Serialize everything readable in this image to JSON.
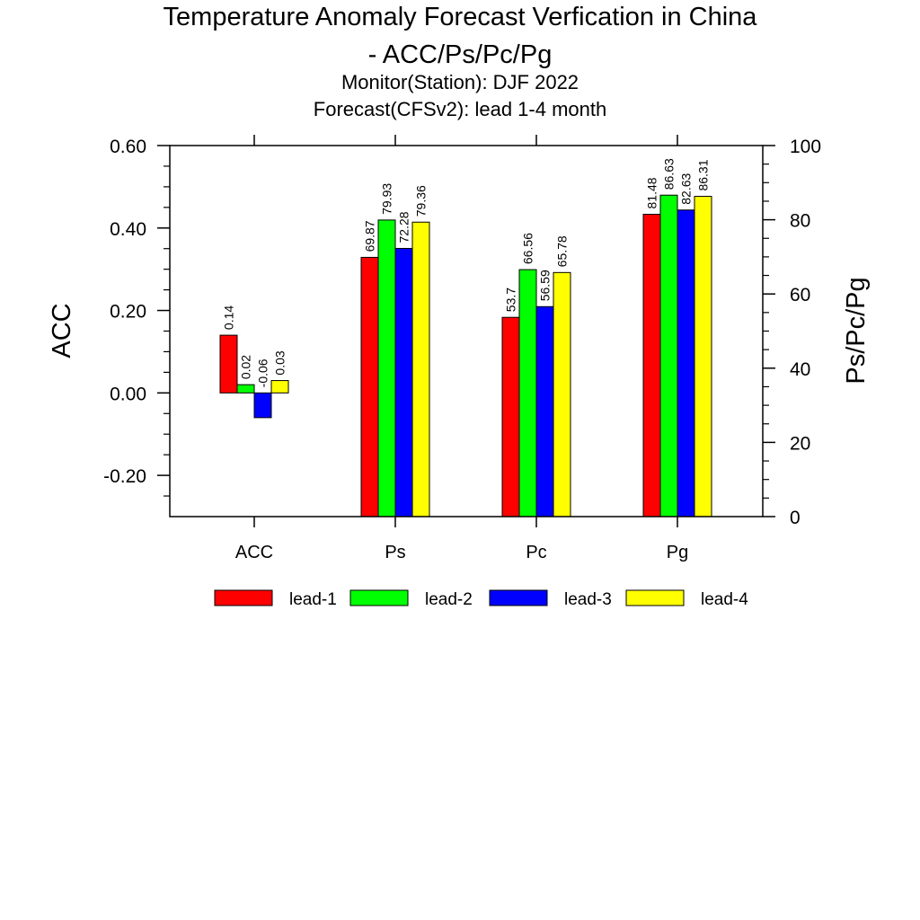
{
  "chart_data": {
    "type": "bar",
    "title_line1": "Temperature Anomaly Forecast Verfication in China",
    "title_line2": "- ACC/Ps/Pc/Pg",
    "subtitle_line1": "Monitor(Station): DJF 2022",
    "subtitle_line2": "Forecast(CFSv2): lead 1-4 month",
    "ylabel_left": "ACC",
    "ylabel_right": "Ps/Pc/Pg",
    "categories": [
      "ACC",
      "Ps",
      "Pc",
      "Pg"
    ],
    "left_axis": {
      "min": -0.3,
      "max": 0.6,
      "ticks": [
        -0.2,
        0.0,
        0.2,
        0.4,
        0.6
      ],
      "tick_labels": [
        "-0.20",
        "0.00",
        "0.20",
        "0.40",
        "0.60"
      ],
      "applies_to": [
        "ACC"
      ]
    },
    "right_axis": {
      "min": 0,
      "max": 100,
      "ticks": [
        0,
        20,
        40,
        60,
        80,
        100
      ],
      "tick_labels": [
        "0",
        "20",
        "40",
        "60",
        "80",
        "100"
      ],
      "applies_to": [
        "Ps",
        "Pc",
        "Pg"
      ]
    },
    "series": [
      {
        "name": "lead-1",
        "color": "#ff0000",
        "values": [
          0.14,
          69.87,
          53.7,
          81.48
        ],
        "labels": [
          "0.14",
          "69.87",
          "53.7",
          "81.48"
        ]
      },
      {
        "name": "lead-2",
        "color": "#00ff00",
        "values": [
          0.02,
          79.93,
          66.56,
          86.63
        ],
        "labels": [
          "0.02",
          "79.93",
          "66.56",
          "86.63"
        ]
      },
      {
        "name": "lead-3",
        "color": "#0000ff",
        "values": [
          -0.06,
          72.28,
          56.59,
          82.63
        ],
        "labels": [
          "-0.06",
          "72.28",
          "56.59",
          "82.63"
        ]
      },
      {
        "name": "lead-4",
        "color": "#ffff00",
        "values": [
          0.03,
          79.36,
          65.78,
          86.31
        ],
        "labels": [
          "0.03",
          "79.36",
          "65.78",
          "86.31"
        ]
      }
    ],
    "legend_position": "bottom",
    "grid": false
  }
}
